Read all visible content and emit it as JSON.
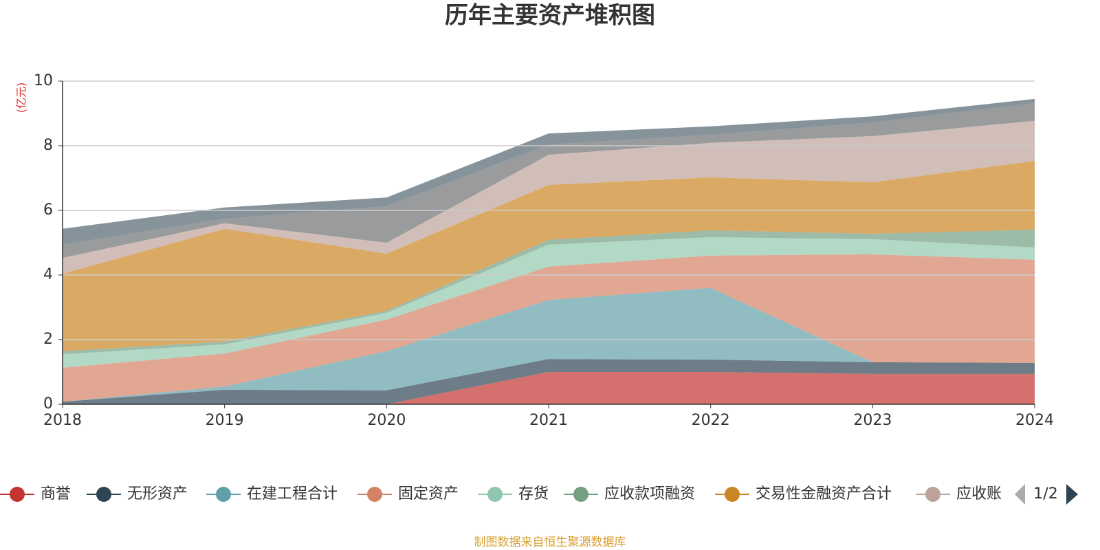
{
  "chart_data": {
    "type": "stacked-area",
    "title": "历年主要资产堆积图",
    "y_unit": "(亿元)",
    "x": [
      "2018",
      "2019",
      "2020",
      "2021",
      "2022",
      "2023",
      "2024"
    ],
    "ylim": [
      0,
      10
    ],
    "yticks": [
      0,
      2,
      4,
      6,
      8,
      10
    ],
    "grid": true,
    "series": [
      {
        "name": "商誉",
        "color": "#c23531",
        "values": [
          0,
          0,
          0,
          1.0,
          1.0,
          0.94,
          0.94
        ]
      },
      {
        "name": "无形资产",
        "color": "#2f4554",
        "values": [
          0.08,
          0.45,
          0.43,
          0.4,
          0.38,
          0.36,
          0.34
        ]
      },
      {
        "name": "在建工程合计",
        "color": "#61a0a8",
        "values": [
          0,
          0.1,
          1.21,
          1.83,
          2.22,
          0,
          0
        ]
      },
      {
        "name": "固定资产",
        "color": "#d48265",
        "values": [
          1.05,
          1.02,
          0.98,
          1.03,
          1.0,
          3.34,
          3.19
        ]
      },
      {
        "name": "存货",
        "color": "#91c7ae",
        "values": [
          0.42,
          0.28,
          0.21,
          0.68,
          0.57,
          0.47,
          0.38
        ]
      },
      {
        "name": "应收款项融资",
        "color": "#749f83",
        "values": [
          0.09,
          0.09,
          0.06,
          0.15,
          0.21,
          0.17,
          0.55
        ]
      },
      {
        "name": "交易性金融资产合计",
        "color": "#ca8622",
        "values": [
          2.4,
          3.49,
          1.77,
          1.7,
          1.64,
          1.59,
          2.13
        ]
      },
      {
        "name": "应收账款",
        "color": "#bda29a",
        "values": [
          0.49,
          0.17,
          0.34,
          0.93,
          1.07,
          1.43,
          1.24
        ]
      },
      {
        "color": "#6e7074",
        "values": [
          0.41,
          0.14,
          1.13,
          0.32,
          0.25,
          0.42,
          0.55
        ]
      },
      {
        "color": "#546570",
        "values": [
          0.49,
          0.35,
          0.27,
          0.34,
          0.26,
          0.19,
          0.13
        ]
      }
    ],
    "legend_page": "1/2",
    "source": "制图数据来自恒生聚源数据库"
  }
}
